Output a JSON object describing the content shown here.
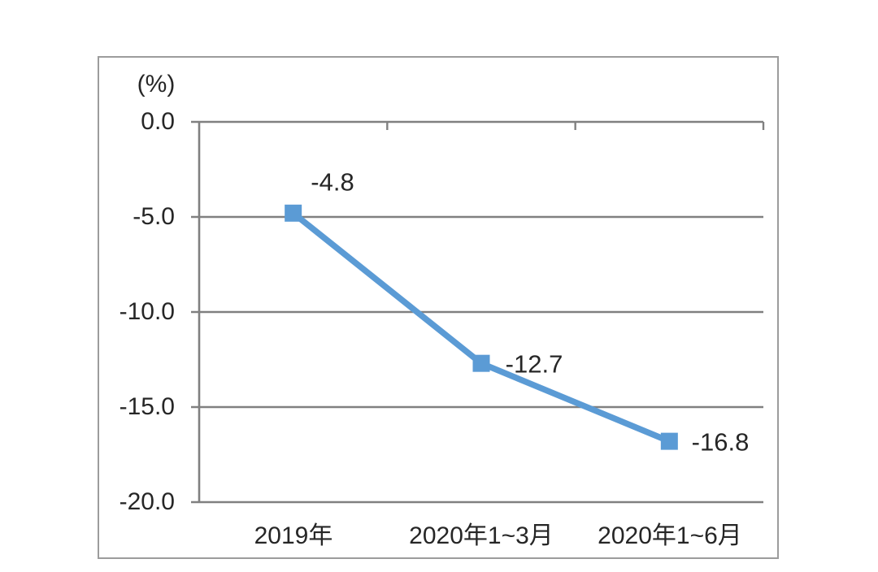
{
  "chart_data": {
    "type": "line",
    "unit_label": "(%)",
    "categories": [
      "2019年",
      "2020年1~3月",
      "2020年1~6月"
    ],
    "values": [
      -4.8,
      -12.7,
      -16.8
    ],
    "data_labels": [
      "-4.8",
      "-12.7",
      "-16.8"
    ],
    "yticks": [
      0,
      -5,
      -10,
      -15,
      -20
    ],
    "ytick_labels": [
      "0.0",
      "-5.0",
      "-10.0",
      "-15.0",
      "-20.0"
    ],
    "ylim": [
      0,
      -20
    ],
    "grid": true,
    "legend": "none",
    "marker": "square",
    "colors": {
      "line": "#5B9BD5",
      "marker": "#5B9BD5",
      "gridline": "#808080",
      "axis": "#808080",
      "frame": "#9c9c9c",
      "text": "#262626",
      "background": "#ffffff"
    }
  }
}
